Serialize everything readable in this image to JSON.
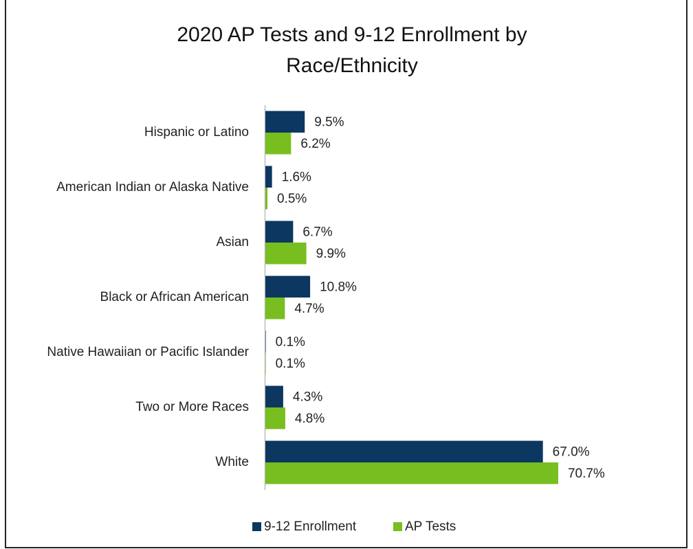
{
  "chart_data": {
    "type": "hbar",
    "title": [
      "2020 AP Tests and 9-12 Enrollment by",
      "Race/Ethnicity"
    ],
    "categories": [
      "Hispanic or Latino",
      "American Indian or Alaska Native",
      "Asian",
      "Black or African American",
      "Native Hawaiian or Pacific Islander",
      "Two or More Races",
      "White"
    ],
    "series": [
      {
        "name": "9-12 Enrollment",
        "color": "#0c3761",
        "values": [
          9.5,
          1.6,
          6.7,
          10.8,
          0.1,
          4.3,
          67.0
        ],
        "value_labels": [
          "9.5%",
          "1.6%",
          "6.7%",
          "10.8%",
          "0.1%",
          "4.3%",
          "67.0%"
        ]
      },
      {
        "name": "AP Tests",
        "color": "#78be20",
        "values": [
          6.2,
          0.5,
          9.9,
          4.7,
          0.1,
          4.8,
          70.7
        ],
        "value_labels": [
          "6.2%",
          "0.5%",
          "9.9%",
          "4.7%",
          "0.1%",
          "4.8%",
          "70.7%"
        ]
      }
    ],
    "xlim": [
      0,
      80
    ],
    "legend": "bottom"
  }
}
